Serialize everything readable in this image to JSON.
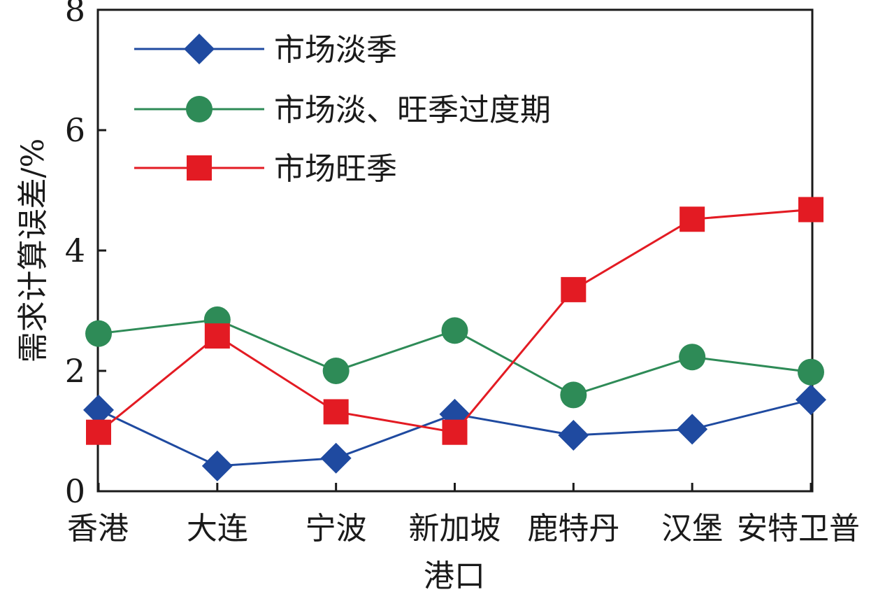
{
  "chart_data": {
    "type": "line",
    "xlabel": "港口",
    "ylabel": "需求计算误差/%",
    "ylim": [
      0,
      8
    ],
    "yticks": [
      0,
      2,
      4,
      6,
      8
    ],
    "grid": false,
    "legend_position": "top-left",
    "categories": [
      "香港",
      "大连",
      "宁波",
      "新加坡",
      "鹿特丹",
      "汉堡",
      "安特卫普"
    ],
    "series": [
      {
        "name": "市场淡季",
        "marker": "diamond",
        "color": "#1f4aa0",
        "values": [
          1.35,
          0.42,
          0.55,
          1.28,
          0.93,
          1.03,
          1.52
        ]
      },
      {
        "name": "市场淡、旺季过度期",
        "marker": "circle",
        "color": "#2e8b57",
        "values": [
          2.62,
          2.85,
          2.0,
          2.67,
          1.6,
          2.23,
          1.98
        ]
      },
      {
        "name": "市场旺季",
        "marker": "square",
        "color": "#e31b23",
        "values": [
          0.98,
          2.58,
          1.32,
          0.98,
          3.35,
          4.52,
          4.68
        ]
      }
    ]
  }
}
